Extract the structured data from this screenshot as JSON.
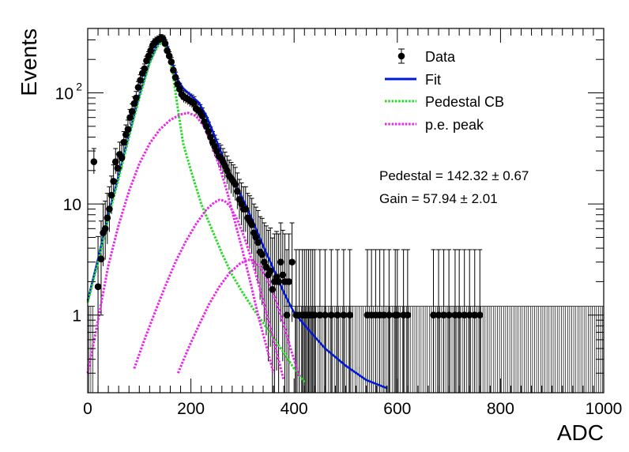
{
  "chart_data": {
    "type": "scatter",
    "title": "",
    "xlabel": "ADC",
    "ylabel": "Events",
    "xlim": [
      0,
      1000
    ],
    "ylim": [
      0.2,
      380
    ],
    "y_scale": "log",
    "x_ticks": [
      "0",
      "200",
      "400",
      "600",
      "800",
      "1000"
    ],
    "y_ticks": [
      {
        "value": 1,
        "label": "1"
      },
      {
        "value": 10,
        "label": "10"
      },
      {
        "value": 100,
        "label": "10",
        "exponent": "2"
      }
    ],
    "legend": {
      "position": "top-right",
      "entries": [
        {
          "label": "Data",
          "style": "marker",
          "color": "#000000"
        },
        {
          "label": "Fit",
          "style": "solid",
          "color": "#0018d8"
        },
        {
          "label": "Pedestal CB",
          "style": "dotted",
          "color": "#22dd22"
        },
        {
          "label": "p.e. peak",
          "style": "dotted",
          "color": "#ee22ee"
        }
      ]
    },
    "annotations": [
      {
        "prefix": "Pedestal = 142.32",
        "pm": "±",
        "value": "0.67"
      },
      {
        "prefix": "Gain = 57.94",
        "pm": "±",
        "value": "2.01"
      }
    ],
    "series": [
      {
        "name": "Data",
        "marker": "circle",
        "color": "#000000",
        "points": [
          [
            12,
            24
          ],
          [
            20,
            1.8
          ],
          [
            26,
            3.2
          ],
          [
            30,
            5.5
          ],
          [
            34,
            6.0
          ],
          [
            38,
            7.5
          ],
          [
            42,
            9.0
          ],
          [
            46,
            12
          ],
          [
            50,
            16
          ],
          [
            54,
            24
          ],
          [
            58,
            21
          ],
          [
            62,
            28
          ],
          [
            66,
            26
          ],
          [
            70,
            36
          ],
          [
            74,
            42
          ],
          [
            78,
            47
          ],
          [
            82,
            60
          ],
          [
            86,
            68
          ],
          [
            90,
            80
          ],
          [
            94,
            90
          ],
          [
            98,
            112
          ],
          [
            102,
            130
          ],
          [
            106,
            150
          ],
          [
            110,
            165
          ],
          [
            114,
            195
          ],
          [
            118,
            215
          ],
          [
            122,
            240
          ],
          [
            126,
            268
          ],
          [
            130,
            285
          ],
          [
            134,
            295
          ],
          [
            138,
            302
          ],
          [
            142,
            312
          ],
          [
            146,
            306
          ],
          [
            150,
            278
          ],
          [
            154,
            240
          ],
          [
            158,
            215
          ],
          [
            162,
            190
          ],
          [
            166,
            160
          ],
          [
            170,
            138
          ],
          [
            174,
            120
          ],
          [
            178,
            108
          ],
          [
            182,
            97
          ],
          [
            186,
            92
          ],
          [
            190,
            90
          ],
          [
            194,
            88
          ],
          [
            198,
            85
          ],
          [
            202,
            83
          ],
          [
            206,
            80
          ],
          [
            210,
            72
          ],
          [
            214,
            70
          ],
          [
            218,
            67
          ],
          [
            222,
            62
          ],
          [
            226,
            55
          ],
          [
            230,
            50
          ],
          [
            234,
            45
          ],
          [
            238,
            40
          ],
          [
            242,
            36
          ],
          [
            246,
            33
          ],
          [
            250,
            30
          ],
          [
            254,
            27
          ],
          [
            258,
            26
          ],
          [
            262,
            24
          ],
          [
            266,
            22
          ],
          [
            270,
            20
          ],
          [
            274,
            18
          ],
          [
            278,
            17
          ],
          [
            282,
            16
          ],
          [
            286,
            15
          ],
          [
            290,
            13
          ],
          [
            294,
            11
          ],
          [
            298,
            10
          ],
          [
            302,
            9
          ],
          [
            306,
            9
          ],
          [
            310,
            7.5
          ],
          [
            314,
            7
          ],
          [
            318,
            6.5
          ],
          [
            322,
            5.5
          ],
          [
            326,
            5
          ],
          [
            330,
            4.5
          ],
          [
            334,
            3.7
          ],
          [
            338,
            3.5
          ],
          [
            342,
            3
          ],
          [
            346,
            2.7
          ],
          [
            350,
            2.3
          ],
          [
            354,
            2.5
          ],
          [
            358,
            1.7
          ],
          [
            362,
            2.0
          ],
          [
            366,
            2.2
          ],
          [
            370,
            2.0
          ],
          [
            374,
            3
          ],
          [
            378,
            2.3
          ],
          [
            382,
            2.0
          ],
          [
            386,
            1.0
          ],
          [
            390,
            2.0
          ],
          [
            396,
            3.0
          ],
          [
            404,
            1.0
          ],
          [
            410,
            1.0
          ],
          [
            416,
            1.0
          ],
          [
            420,
            1.0
          ],
          [
            424,
            1.0
          ],
          [
            428,
            1.0
          ],
          [
            432,
            1.0
          ],
          [
            436,
            1.0
          ],
          [
            440,
            1.0
          ],
          [
            450,
            1.0
          ],
          [
            460,
            1.0
          ],
          [
            472,
            1.0
          ],
          [
            484,
            1.0
          ],
          [
            496,
            1.0
          ],
          [
            508,
            1.0
          ],
          [
            542,
            1.0
          ],
          [
            550,
            1.0
          ],
          [
            558,
            1.0
          ],
          [
            566,
            1.0
          ],
          [
            574,
            1.0
          ],
          [
            584,
            1.0
          ],
          [
            596,
            1.0
          ],
          [
            600,
            1.0
          ],
          [
            612,
            1.0
          ],
          [
            620,
            1.0
          ],
          [
            670,
            1.0
          ],
          [
            680,
            1.0
          ],
          [
            690,
            1.0
          ],
          [
            700,
            1.0
          ],
          [
            712,
            1.0
          ],
          [
            720,
            1.0
          ],
          [
            730,
            1.0
          ],
          [
            740,
            1.0
          ],
          [
            750,
            1.0
          ],
          [
            760,
            1.0
          ]
        ]
      },
      {
        "name": "Fit",
        "style": "solid",
        "color": "#0018d8",
        "points": [
          [
            0,
            1.35
          ],
          [
            20,
            3.2
          ],
          [
            40,
            8
          ],
          [
            60,
            18
          ],
          [
            80,
            42
          ],
          [
            100,
            95
          ],
          [
            120,
            190
          ],
          [
            135,
            270
          ],
          [
            145,
            300
          ],
          [
            155,
            260
          ],
          [
            165,
            180
          ],
          [
            175,
            130
          ],
          [
            185,
            110
          ],
          [
            200,
            95
          ],
          [
            215,
            82
          ],
          [
            230,
            62
          ],
          [
            245,
            42
          ],
          [
            260,
            28
          ],
          [
            275,
            19
          ],
          [
            290,
            14
          ],
          [
            305,
            10
          ],
          [
            320,
            7
          ],
          [
            340,
            4.2
          ],
          [
            360,
            2.6
          ],
          [
            380,
            1.6
          ],
          [
            400,
            1.05
          ],
          [
            430,
            0.72
          ],
          [
            460,
            0.5
          ],
          [
            500,
            0.35
          ],
          [
            540,
            0.26
          ],
          [
            580,
            0.22
          ],
          [
            620,
            0.185
          ]
        ]
      },
      {
        "name": "Pedestal CB",
        "style": "dotted",
        "color": "#22dd22",
        "points": [
          [
            0,
            1.3
          ],
          [
            20,
            3
          ],
          [
            40,
            7.5
          ],
          [
            60,
            17
          ],
          [
            80,
            40
          ],
          [
            100,
            90
          ],
          [
            120,
            185
          ],
          [
            135,
            260
          ],
          [
            145,
            290
          ],
          [
            155,
            240
          ],
          [
            165,
            150
          ],
          [
            175,
            70
          ],
          [
            185,
            35
          ],
          [
            200,
            20
          ],
          [
            220,
            10
          ],
          [
            240,
            6
          ],
          [
            260,
            3.6
          ],
          [
            280,
            2.3
          ],
          [
            300,
            1.6
          ],
          [
            320,
            1.15
          ],
          [
            340,
            0.85
          ],
          [
            360,
            0.62
          ],
          [
            380,
            0.46
          ],
          [
            400,
            0.33
          ],
          [
            420,
            0.25
          ],
          [
            440,
            0.19
          ]
        ]
      },
      {
        "name": "p.e. peak 1",
        "style": "dotted",
        "color": "#ee22ee",
        "points": [
          [
            0,
            0.3
          ],
          [
            20,
            0.9
          ],
          [
            40,
            2.8
          ],
          [
            60,
            6.5
          ],
          [
            80,
            13
          ],
          [
            100,
            23
          ],
          [
            120,
            35
          ],
          [
            140,
            47
          ],
          [
            160,
            57
          ],
          [
            180,
            64
          ],
          [
            195,
            66
          ],
          [
            210,
            62
          ],
          [
            225,
            50
          ],
          [
            240,
            35
          ],
          [
            255,
            22
          ],
          [
            270,
            13
          ],
          [
            285,
            7
          ],
          [
            300,
            3.8
          ],
          [
            315,
            2.0
          ],
          [
            330,
            1.0
          ],
          [
            345,
            0.55
          ],
          [
            360,
            0.3
          ],
          [
            375,
            0.19
          ]
        ]
      },
      {
        "name": "p.e. peak 2",
        "style": "dotted",
        "color": "#ee22ee",
        "points": [
          [
            70,
            0.19
          ],
          [
            90,
            0.33
          ],
          [
            110,
            0.6
          ],
          [
            130,
            1.05
          ],
          [
            150,
            1.8
          ],
          [
            170,
            3.0
          ],
          [
            190,
            4.6
          ],
          [
            210,
            6.6
          ],
          [
            230,
            8.9
          ],
          [
            245,
            10.3
          ],
          [
            255,
            10.9
          ],
          [
            265,
            10.7
          ],
          [
            275,
            9.6
          ],
          [
            290,
            7.2
          ],
          [
            305,
            4.8
          ],
          [
            320,
            2.9
          ],
          [
            340,
            1.35
          ],
          [
            360,
            0.6
          ],
          [
            380,
            0.26
          ],
          [
            392,
            0.19
          ]
        ]
      },
      {
        "name": "p.e. peak 3",
        "style": "dotted",
        "color": "#ee22ee",
        "points": [
          [
            155,
            0.19
          ],
          [
            175,
            0.3
          ],
          [
            195,
            0.5
          ],
          [
            215,
            0.8
          ],
          [
            235,
            1.25
          ],
          [
            255,
            1.8
          ],
          [
            275,
            2.4
          ],
          [
            295,
            2.9
          ],
          [
            310,
            3.15
          ],
          [
            320,
            3.1
          ],
          [
            335,
            2.7
          ],
          [
            350,
            2.0
          ],
          [
            365,
            1.35
          ],
          [
            380,
            0.82
          ],
          [
            395,
            0.47
          ],
          [
            410,
            0.28
          ],
          [
            425,
            0.19
          ]
        ]
      }
    ]
  }
}
